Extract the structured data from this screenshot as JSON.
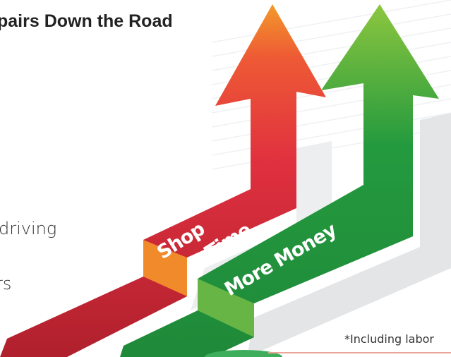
{
  "header": {
    "title": "pairs Down the Road"
  },
  "body_lines": [
    "driving",
    "rs"
  ],
  "arrows": [
    {
      "label_lines": [
        "Shop",
        "Time"
      ]
    },
    {
      "label_lines": [
        "More Money"
      ]
    }
  ],
  "footnote": "*Including labor"
}
